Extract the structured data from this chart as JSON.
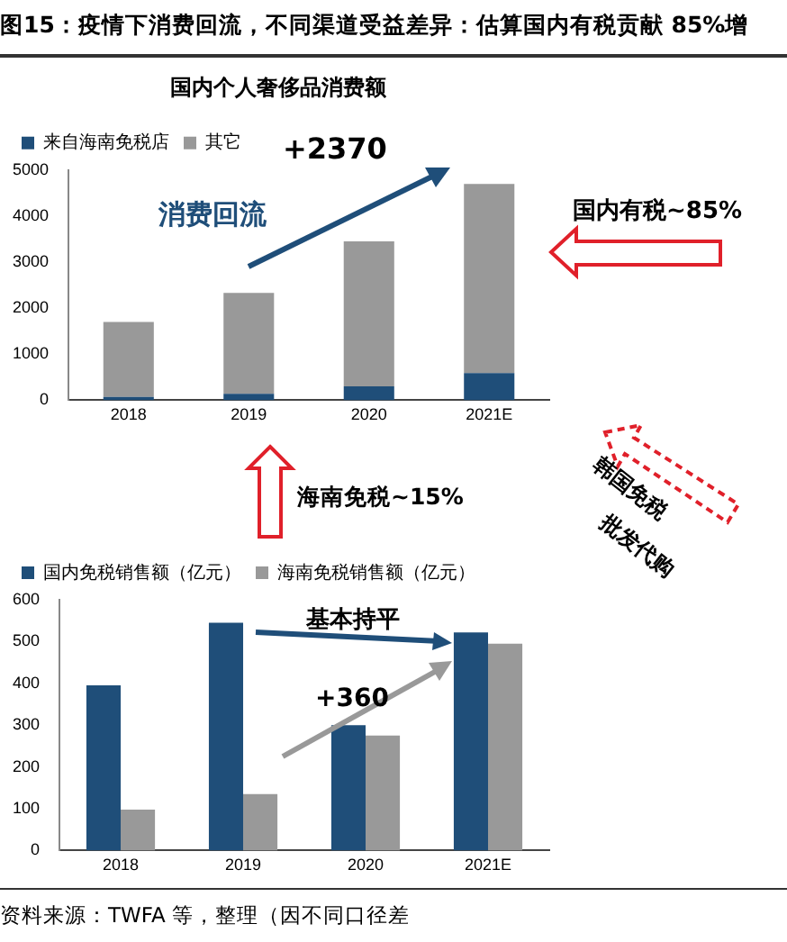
{
  "chart_data": [
    {
      "type": "bar",
      "title": "图15：疫情下消费回流，不同渠道受益差异：估算国内有税贡献 85%增",
      "subtitle": "国内个人奢侈品消费额",
      "categories": [
        "2018",
        "2019",
        "2020",
        "2021E"
      ],
      "stacked": true,
      "series": [
        {
          "name": "来自海南免税店",
          "color": "#1f4e79",
          "values": [
            70,
            140,
            300,
            590
          ]
        },
        {
          "name": "其它",
          "color": "#999999",
          "values": [
            1630,
            2190,
            3150,
            4110
          ]
        }
      ],
      "ylim": [
        0,
        5000
      ],
      "yticks": [
        0,
        1000,
        2000,
        3000,
        4000,
        5000
      ],
      "grid": false,
      "legend": "top",
      "annotations": [
        "+2370",
        "消费回流",
        "国内有税~85%",
        "海南免税~15%",
        "韩国免税",
        "批发代购"
      ]
    },
    {
      "type": "bar",
      "categories": [
        "2018",
        "2019",
        "2020",
        "2021E"
      ],
      "series": [
        {
          "name": "国内免税销售额（亿元）",
          "color": "#1f4e79",
          "values": [
            395,
            545,
            300,
            522
          ]
        },
        {
          "name": "海南免税销售额（亿元）",
          "color": "#999999",
          "values": [
            98,
            135,
            275,
            495
          ]
        }
      ],
      "ylim": [
        0,
        600
      ],
      "yticks": [
        0,
        100,
        200,
        300,
        400,
        500,
        600
      ],
      "grid": false,
      "legend": "top",
      "annotations": [
        "基本持平",
        "+360",
        "资料来源：TWFA 等，整理（因不同口径差"
      ]
    }
  ]
}
